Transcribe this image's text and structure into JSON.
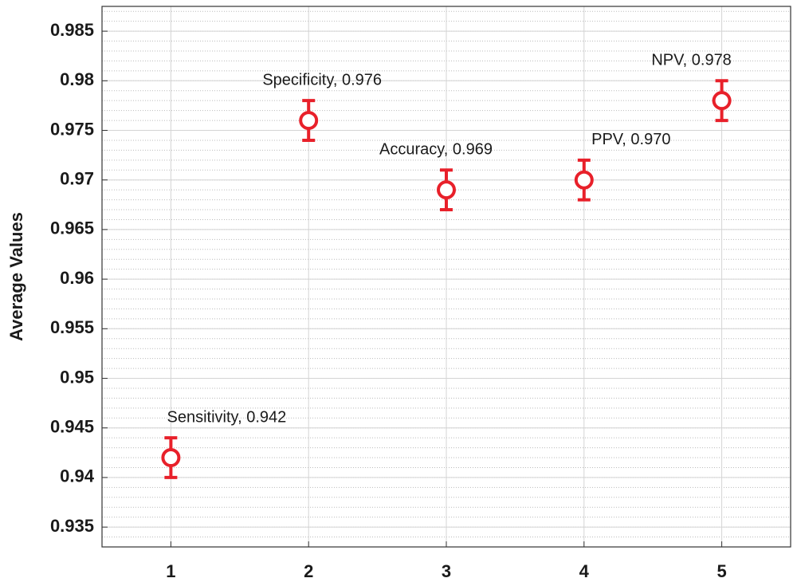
{
  "chart_data": {
    "type": "errorbar",
    "ylabel": "Average Values",
    "x": [
      1,
      2,
      3,
      4,
      5
    ],
    "values": [
      0.942,
      0.976,
      0.969,
      0.97,
      0.978
    ],
    "errors": [
      0.002,
      0.002,
      0.002,
      0.002,
      0.002
    ],
    "annotations": [
      "Sensitivity, 0.942",
      "Specificity, 0.976",
      "Accuracy, 0.969",
      "PPV, 0.970",
      "NPV, 0.978"
    ],
    "color": "#e8202a",
    "xlim": [
      0.5,
      5.5
    ],
    "xticks": [
      1,
      2,
      3,
      4,
      5
    ],
    "ylim": [
      0.933,
      0.9875
    ],
    "yticks": [
      0.935,
      0.94,
      0.945,
      0.95,
      0.955,
      0.96,
      0.965,
      0.97,
      0.975,
      0.98,
      0.985
    ],
    "grid": true,
    "minor_grid": true
  }
}
